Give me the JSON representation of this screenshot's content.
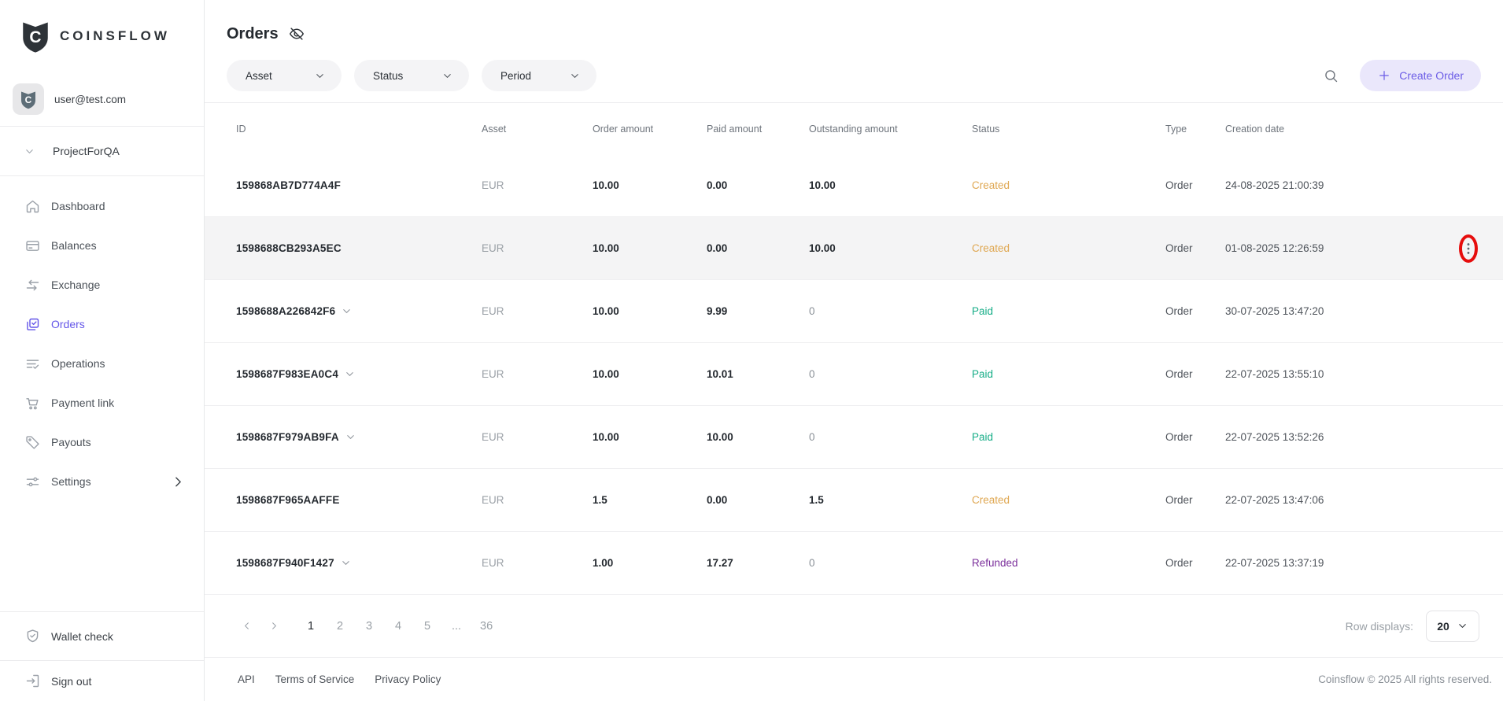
{
  "brand": {
    "name": "COINSFLOW",
    "logo_letter": "C",
    "logo_icon": "shield-logo-icon"
  },
  "user": {
    "email": "user@test.com",
    "avatar_icon": "shield-avatar-icon"
  },
  "project": {
    "name": "ProjectForQA",
    "collapse_icon": "chevron-down-icon"
  },
  "sidebar": {
    "items": [
      {
        "label": "Dashboard",
        "icon": "home-icon",
        "active": false,
        "has_submenu": false
      },
      {
        "label": "Balances",
        "icon": "card-icon",
        "active": false,
        "has_submenu": false
      },
      {
        "label": "Exchange",
        "icon": "exchange-icon",
        "active": false,
        "has_submenu": false
      },
      {
        "label": "Orders",
        "icon": "orders-icon",
        "active": true,
        "has_submenu": false
      },
      {
        "label": "Operations",
        "icon": "operations-icon",
        "active": false,
        "has_submenu": false
      },
      {
        "label": "Payment link",
        "icon": "cart-icon",
        "active": false,
        "has_submenu": false
      },
      {
        "label": "Payouts",
        "icon": "tag-icon",
        "active": false,
        "has_submenu": false
      },
      {
        "label": "Settings",
        "icon": "sliders-icon",
        "active": false,
        "has_submenu": true
      }
    ],
    "bottom_items": [
      {
        "label": "Wallet check",
        "icon": "shield-check-icon"
      },
      {
        "label": "Sign out",
        "icon": "sign-out-icon"
      }
    ]
  },
  "header": {
    "title": "Orders",
    "visibility_icon": "eye-slash-icon"
  },
  "filters": [
    {
      "label": "Asset"
    },
    {
      "label": "Status"
    },
    {
      "label": "Period"
    }
  ],
  "toolbar": {
    "search_icon": "search-icon",
    "create_order_label": "Create Order",
    "create_order_icon": "plus-icon"
  },
  "table": {
    "columns": [
      "ID",
      "Asset",
      "Order amount",
      "Paid amount",
      "Outstanding amount",
      "Status",
      "Type",
      "Creation date"
    ],
    "rows": [
      {
        "id": "159868AB7D774A4F",
        "expandable": false,
        "asset": "EUR",
        "order_amount": "10.00",
        "paid_amount": "0.00",
        "outstanding": "10.00",
        "status": "Created",
        "type": "Order",
        "date": "24-08-2025 21:00:39",
        "highlighted": false,
        "kebab": false,
        "annotated": false
      },
      {
        "id": "1598688CB293A5EC",
        "expandable": false,
        "asset": "EUR",
        "order_amount": "10.00",
        "paid_amount": "0.00",
        "outstanding": "10.00",
        "status": "Created",
        "type": "Order",
        "date": "01-08-2025 12:26:59",
        "highlighted": true,
        "kebab": true,
        "annotated": true
      },
      {
        "id": "1598688A226842F6",
        "expandable": true,
        "asset": "EUR",
        "order_amount": "10.00",
        "paid_amount": "9.99",
        "outstanding": "0",
        "status": "Paid",
        "type": "Order",
        "date": "30-07-2025 13:47:20",
        "highlighted": false,
        "kebab": false,
        "annotated": false
      },
      {
        "id": "1598687F983EA0C4",
        "expandable": true,
        "asset": "EUR",
        "order_amount": "10.00",
        "paid_amount": "10.01",
        "outstanding": "0",
        "status": "Paid",
        "type": "Order",
        "date": "22-07-2025 13:55:10",
        "highlighted": false,
        "kebab": false,
        "annotated": false
      },
      {
        "id": "1598687F979AB9FA",
        "expandable": true,
        "asset": "EUR",
        "order_amount": "10.00",
        "paid_amount": "10.00",
        "outstanding": "0",
        "status": "Paid",
        "type": "Order",
        "date": "22-07-2025 13:52:26",
        "highlighted": false,
        "kebab": false,
        "annotated": false
      },
      {
        "id": "1598687F965AAFFE",
        "expandable": false,
        "asset": "EUR",
        "order_amount": "1.5",
        "paid_amount": "0.00",
        "outstanding": "1.5",
        "status": "Created",
        "type": "Order",
        "date": "22-07-2025 13:47:06",
        "highlighted": false,
        "kebab": false,
        "annotated": false
      },
      {
        "id": "1598687F940F1427",
        "expandable": true,
        "asset": "EUR",
        "order_amount": "1.00",
        "paid_amount": "17.27",
        "outstanding": "0",
        "status": "Refunded",
        "type": "Order",
        "date": "22-07-2025 13:37:19",
        "highlighted": false,
        "kebab": false,
        "annotated": false
      }
    ]
  },
  "status_colors": {
    "Created": "#dfa751",
    "Paid": "#16ad87",
    "Refunded": "#7b2f9b"
  },
  "annotation_color": "#e60d0d",
  "accent_color": "#6456e8",
  "pagination": {
    "prev_icon": "chevron-left-icon",
    "next_icon": "chevron-right-icon",
    "pages": [
      "1",
      "2",
      "3",
      "4",
      "5",
      "...",
      "36"
    ],
    "current": "1",
    "row_displays_label": "Row displays:",
    "row_displays_value": "20"
  },
  "footer": {
    "links": [
      "API",
      "Terms of Service",
      "Privacy Policy"
    ],
    "copyright": "Coinsflow © 2025 All rights reserved."
  }
}
